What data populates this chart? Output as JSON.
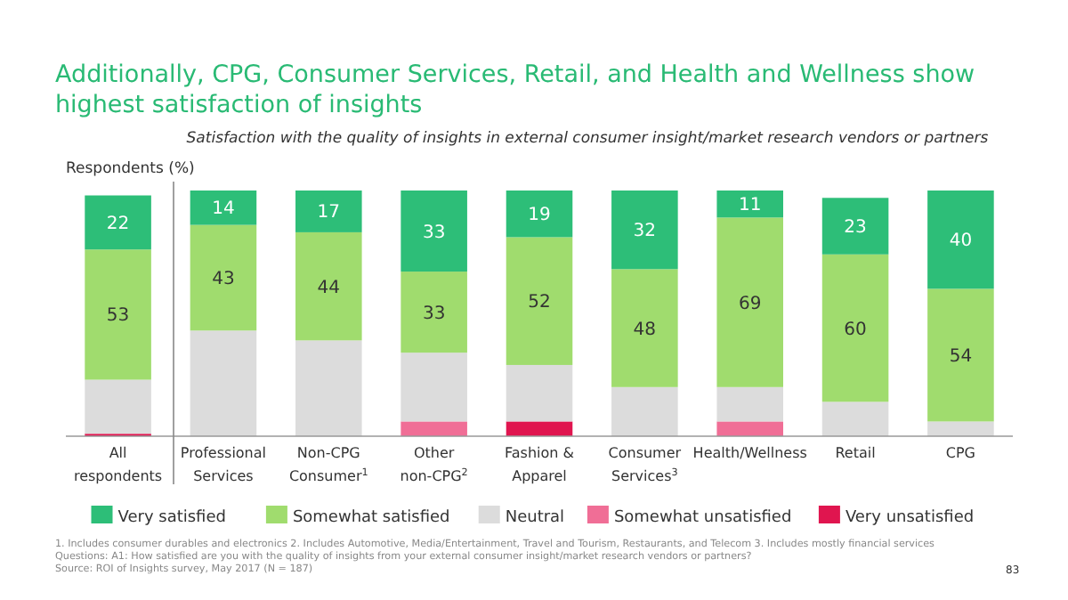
{
  "chart_data": {
    "type": "bar",
    "stacked": true,
    "title": "Additionally, CPG, Consumer Services, Retail, and Health and Wellness show highest satisfaction of insights",
    "subtitle": "Satisfaction with the quality of insights in external consumer insight/market research vendors or  partners",
    "ylabel": "Respondents (%)",
    "categories": [
      "All respondents",
      "Professional Services",
      "Non-CPG Consumer$^{1}$",
      "Other non-CPG$^{2}$",
      "Fashion & Apparel",
      "Consumer Services$^{3}$",
      "Health/Wellness",
      "Retail",
      "CPG"
    ],
    "series": [
      {
        "name": "Very unsatisfied",
        "color": "#e0154f",
        "values": [
          1,
          0,
          0,
          0,
          6,
          0,
          0,
          0,
          0
        ]
      },
      {
        "name": "Somewhat unsatisfied",
        "color": "#f06e96",
        "values": [
          0,
          0,
          0,
          6,
          0,
          0,
          6,
          0,
          0
        ]
      },
      {
        "name": "Neutral",
        "color": "#dcdcdc",
        "values": [
          22,
          43,
          39,
          28,
          23,
          20,
          14,
          14,
          6
        ]
      },
      {
        "name": "Somewhat satisfied",
        "color": "#a0dc6e",
        "values": [
          53,
          43,
          44,
          33,
          52,
          48,
          69,
          60,
          54
        ],
        "value_labels": [
          "53",
          "43",
          "44",
          "33",
          "52",
          "48",
          "69",
          "60",
          "54"
        ]
      },
      {
        "name": "Very satisfied",
        "color": "#2dbe78",
        "values": [
          22,
          14,
          17,
          33,
          19,
          32,
          11,
          23,
          40
        ],
        "value_labels": [
          "22",
          "14",
          "17",
          "33",
          "19",
          "32",
          "11",
          "23",
          "40"
        ]
      }
    ],
    "legend": "bottom",
    "tick_labels": "x",
    "annotations": [
      "1. Includes consumer durables and electronics 2. Includes Automotive, Media/Entertainment, Travel and Tourism, Restaurants, and Telecom 3. Includes mostly financial services",
      "Questions: A1: How satisfied are you with the quality of insights from your external consumer insight/market research vendors or partners?",
      "Source: ROI of Insights survey, May 2017 (N = 187)",
      "83"
    ]
  }
}
